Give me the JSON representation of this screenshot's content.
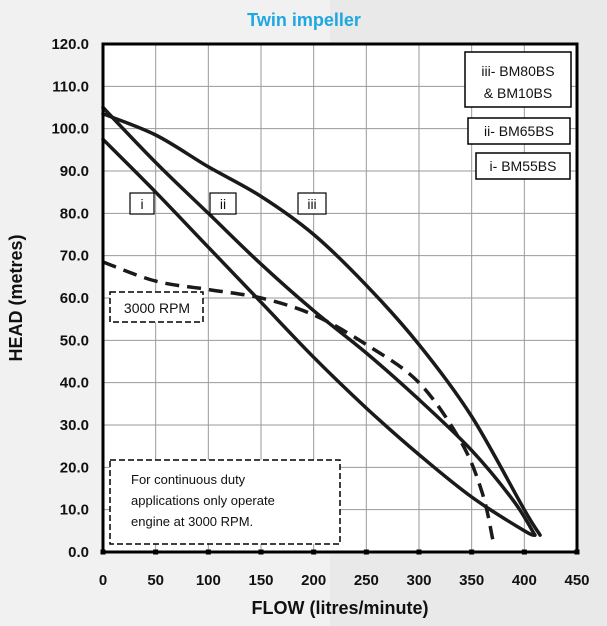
{
  "chart_data": {
    "type": "line",
    "title": "Twin impeller",
    "xlabel": "FLOW (litres/minute)",
    "ylabel": "HEAD (metres)",
    "xlim": [
      0,
      450
    ],
    "ylim": [
      0,
      120
    ],
    "x_ticks": [
      "0",
      "50",
      "100",
      "150",
      "200",
      "250",
      "300",
      "350",
      "400",
      "450"
    ],
    "y_ticks": [
      "0.0",
      "10.0",
      "20.0",
      "30.0",
      "40.0",
      "50.0",
      "60.0",
      "70.0",
      "80.0",
      "90.0",
      "100.0",
      "110.0",
      "120.0"
    ],
    "grid": true,
    "series": [
      {
        "id": "i",
        "name": "i- BM55BS",
        "curve_label": "i",
        "style": "solid",
        "points": [
          [
            0,
            97.5
          ],
          [
            50,
            85
          ],
          [
            100,
            72
          ],
          [
            150,
            59
          ],
          [
            200,
            46
          ],
          [
            250,
            34
          ],
          [
            300,
            23
          ],
          [
            350,
            13
          ],
          [
            400,
            5
          ],
          [
            410,
            4
          ]
        ]
      },
      {
        "id": "ii",
        "name": "ii- BM65BS",
        "curve_label": "ii",
        "style": "solid",
        "points": [
          [
            0,
            105
          ],
          [
            50,
            92
          ],
          [
            100,
            80
          ],
          [
            150,
            68
          ],
          [
            200,
            57
          ],
          [
            250,
            47
          ],
          [
            300,
            36
          ],
          [
            350,
            24
          ],
          [
            390,
            12
          ],
          [
            410,
            4
          ]
        ]
      },
      {
        "id": "iii",
        "name": "iii- BM80BS\n& BM10BS",
        "curve_label": "iii",
        "style": "solid",
        "points": [
          [
            0,
            103.5
          ],
          [
            50,
            98.5
          ],
          [
            100,
            91
          ],
          [
            150,
            84
          ],
          [
            200,
            75
          ],
          [
            250,
            63
          ],
          [
            300,
            49
          ],
          [
            350,
            32
          ],
          [
            400,
            10
          ],
          [
            415,
            4
          ]
        ]
      },
      {
        "id": "rpm",
        "name": "3000 RPM",
        "style": "dashed",
        "points": [
          [
            0,
            68.5
          ],
          [
            50,
            64
          ],
          [
            100,
            62
          ],
          [
            150,
            60
          ],
          [
            200,
            56
          ],
          [
            250,
            49
          ],
          [
            300,
            40
          ],
          [
            340,
            26
          ],
          [
            360,
            14
          ],
          [
            370,
            3
          ]
        ]
      }
    ],
    "legend_labels": [
      "iii- BM80BS",
      "& BM10BS",
      "ii- BM65BS",
      "i- BM55BS"
    ],
    "legend_position": "top-right",
    "rpm_label": "3000 RPM",
    "note_lines": [
      "For continuous duty",
      "applications only operate",
      "engine at 3000 RPM."
    ]
  }
}
